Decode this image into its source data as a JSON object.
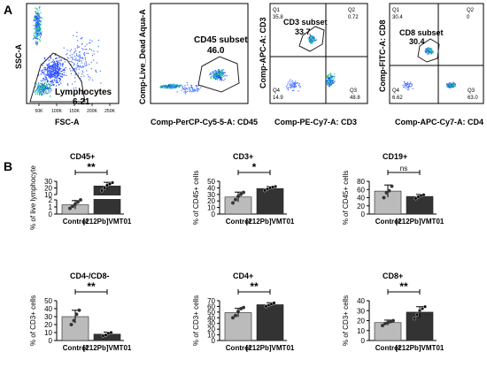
{
  "panel_labels": {
    "a": "A",
    "b": "B"
  },
  "flow": [
    {
      "ylabel": "SSC-A",
      "xlabel": "FSC-A",
      "gate_name": "Lymphocytes",
      "gate_value": "6.21",
      "xticks": [
        "50K",
        "100K",
        "150K",
        "200K",
        "250K"
      ],
      "yticks": [
        "50K",
        "100K",
        "150K",
        "200K",
        "250K"
      ]
    },
    {
      "ylabel": "Comp-Live_Dead Aqua-A",
      "xlabel": "Comp-PerCP-Cy5-5-A: CD45",
      "gate_name": "CD45 subset",
      "gate_value": "46.0"
    },
    {
      "ylabel": "Comp-APC-A: CD3",
      "xlabel": "Comp-PE-Cy7-A: CD3",
      "gate_name": "CD3 subset",
      "gate_value": "33.7",
      "quadrants": {
        "q1": "Q1",
        "q1v": "35.8",
        "q2": "Q2",
        "q2v": "0.72",
        "q3": "Q3",
        "q3v": "48.8",
        "q4": "Q4",
        "q4v": "14.9"
      }
    },
    {
      "ylabel": "Comp-FITC-A: CD8",
      "xlabel": "Comp-APC-Cy7-A: CD4",
      "gate_name": "CD8 subset",
      "gate_value": "30.4",
      "quadrants": {
        "q1": "Q1",
        "q1v": "30.4",
        "q2": "Q2",
        "q2v": "0",
        "q3": "Q3",
        "q3v": "63.0",
        "q4": "Q4",
        "q4v": "6.62"
      }
    }
  ],
  "chart_data": [
    {
      "type": "bar",
      "title": "CD45+",
      "ylabel": "% of live lymphocyte",
      "categories": [
        "Control",
        "[212Pb]VMT01"
      ],
      "values": [
        1.3,
        23
      ],
      "errors": [
        0.6,
        5.5
      ],
      "points": [
        [
          0.8,
          1.1,
          1.4,
          1.7,
          2.0
        ],
        [
          16,
          20,
          24,
          26,
          28
        ]
      ],
      "yticks": [
        "0",
        "1",
        "2",
        "10",
        "20",
        "30"
      ],
      "axis_break": true,
      "significance": "**",
      "colors": [
        "#bbbbbb",
        "#333333"
      ]
    },
    {
      "type": "bar",
      "title": "CD3+",
      "ylabel": "% of CD45+ cells",
      "categories": [
        "Control",
        "[212Pb]VMT01"
      ],
      "values": [
        26,
        39
      ],
      "errors": [
        7.5,
        3
      ],
      "points": [
        [
          17,
          22,
          27,
          30,
          33
        ],
        [
          36,
          38,
          40,
          41,
          42
        ]
      ],
      "yticks": [
        "0",
        "10",
        "20",
        "30",
        "40",
        "50"
      ],
      "ylim": [
        0,
        50
      ],
      "significance": "*",
      "colors": [
        "#bbbbbb",
        "#333333"
      ]
    },
    {
      "type": "bar",
      "title": "CD19+",
      "ylabel": "% of CD45+ cells",
      "categories": [
        "Control",
        "[212Pb]VMT01"
      ],
      "values": [
        56,
        43
      ],
      "errors": [
        15,
        5
      ],
      "points": [
        [
          40,
          52,
          57,
          68
        ],
        [
          38,
          42,
          45,
          47
        ]
      ],
      "yticks": [
        "0",
        "20",
        "40",
        "60",
        "80"
      ],
      "ylim": [
        0,
        80
      ],
      "significance": "ns",
      "colors": [
        "#bbbbbb",
        "#333333"
      ]
    },
    {
      "type": "bar",
      "title": "CD4-/CD8-",
      "ylabel": "% of CD3+ cells",
      "categories": [
        "Control",
        "[212Pb]VMT01"
      ],
      "values": [
        30,
        8
      ],
      "errors": [
        8,
        2.5
      ],
      "points": [
        [
          20,
          25,
          33,
          38
        ],
        [
          6,
          7,
          9,
          10
        ]
      ],
      "yticks": [
        "0",
        "10",
        "20",
        "30",
        "40",
        "50"
      ],
      "ylim": [
        0,
        50
      ],
      "significance": "**",
      "colors": [
        "#bbbbbb",
        "#333333"
      ]
    },
    {
      "type": "bar",
      "title": "CD4+",
      "ylabel": "% of CD3+ cells",
      "categories": [
        "Control",
        "[212Pb]VMT01"
      ],
      "values": [
        49,
        63
      ],
      "errors": [
        7.5,
        3.5
      ],
      "points": [
        [
          40,
          44,
          51,
          56,
          58
        ],
        [
          60,
          62,
          64,
          66
        ]
      ],
      "yticks": [
        "0",
        "10",
        "20",
        "30",
        "40",
        "50",
        "60",
        "70"
      ],
      "ylim": [
        0,
        70
      ],
      "significance": "**",
      "colors": [
        "#bbbbbb",
        "#333333"
      ]
    },
    {
      "type": "bar",
      "title": "CD8+",
      "ylabel": "% of CD3+ cells",
      "categories": [
        "Control",
        "[212Pb]VMT01"
      ],
      "values": [
        18,
        28.5
      ],
      "errors": [
        2.5,
        5.5
      ],
      "points": [
        [
          15,
          17,
          18,
          19,
          20
        ],
        [
          22,
          26,
          30,
          32,
          34
        ]
      ],
      "yticks": [
        "0",
        "10",
        "20",
        "30",
        "40"
      ],
      "ylim": [
        0,
        40
      ],
      "significance": "**",
      "colors": [
        "#bbbbbb",
        "#333333"
      ]
    }
  ]
}
